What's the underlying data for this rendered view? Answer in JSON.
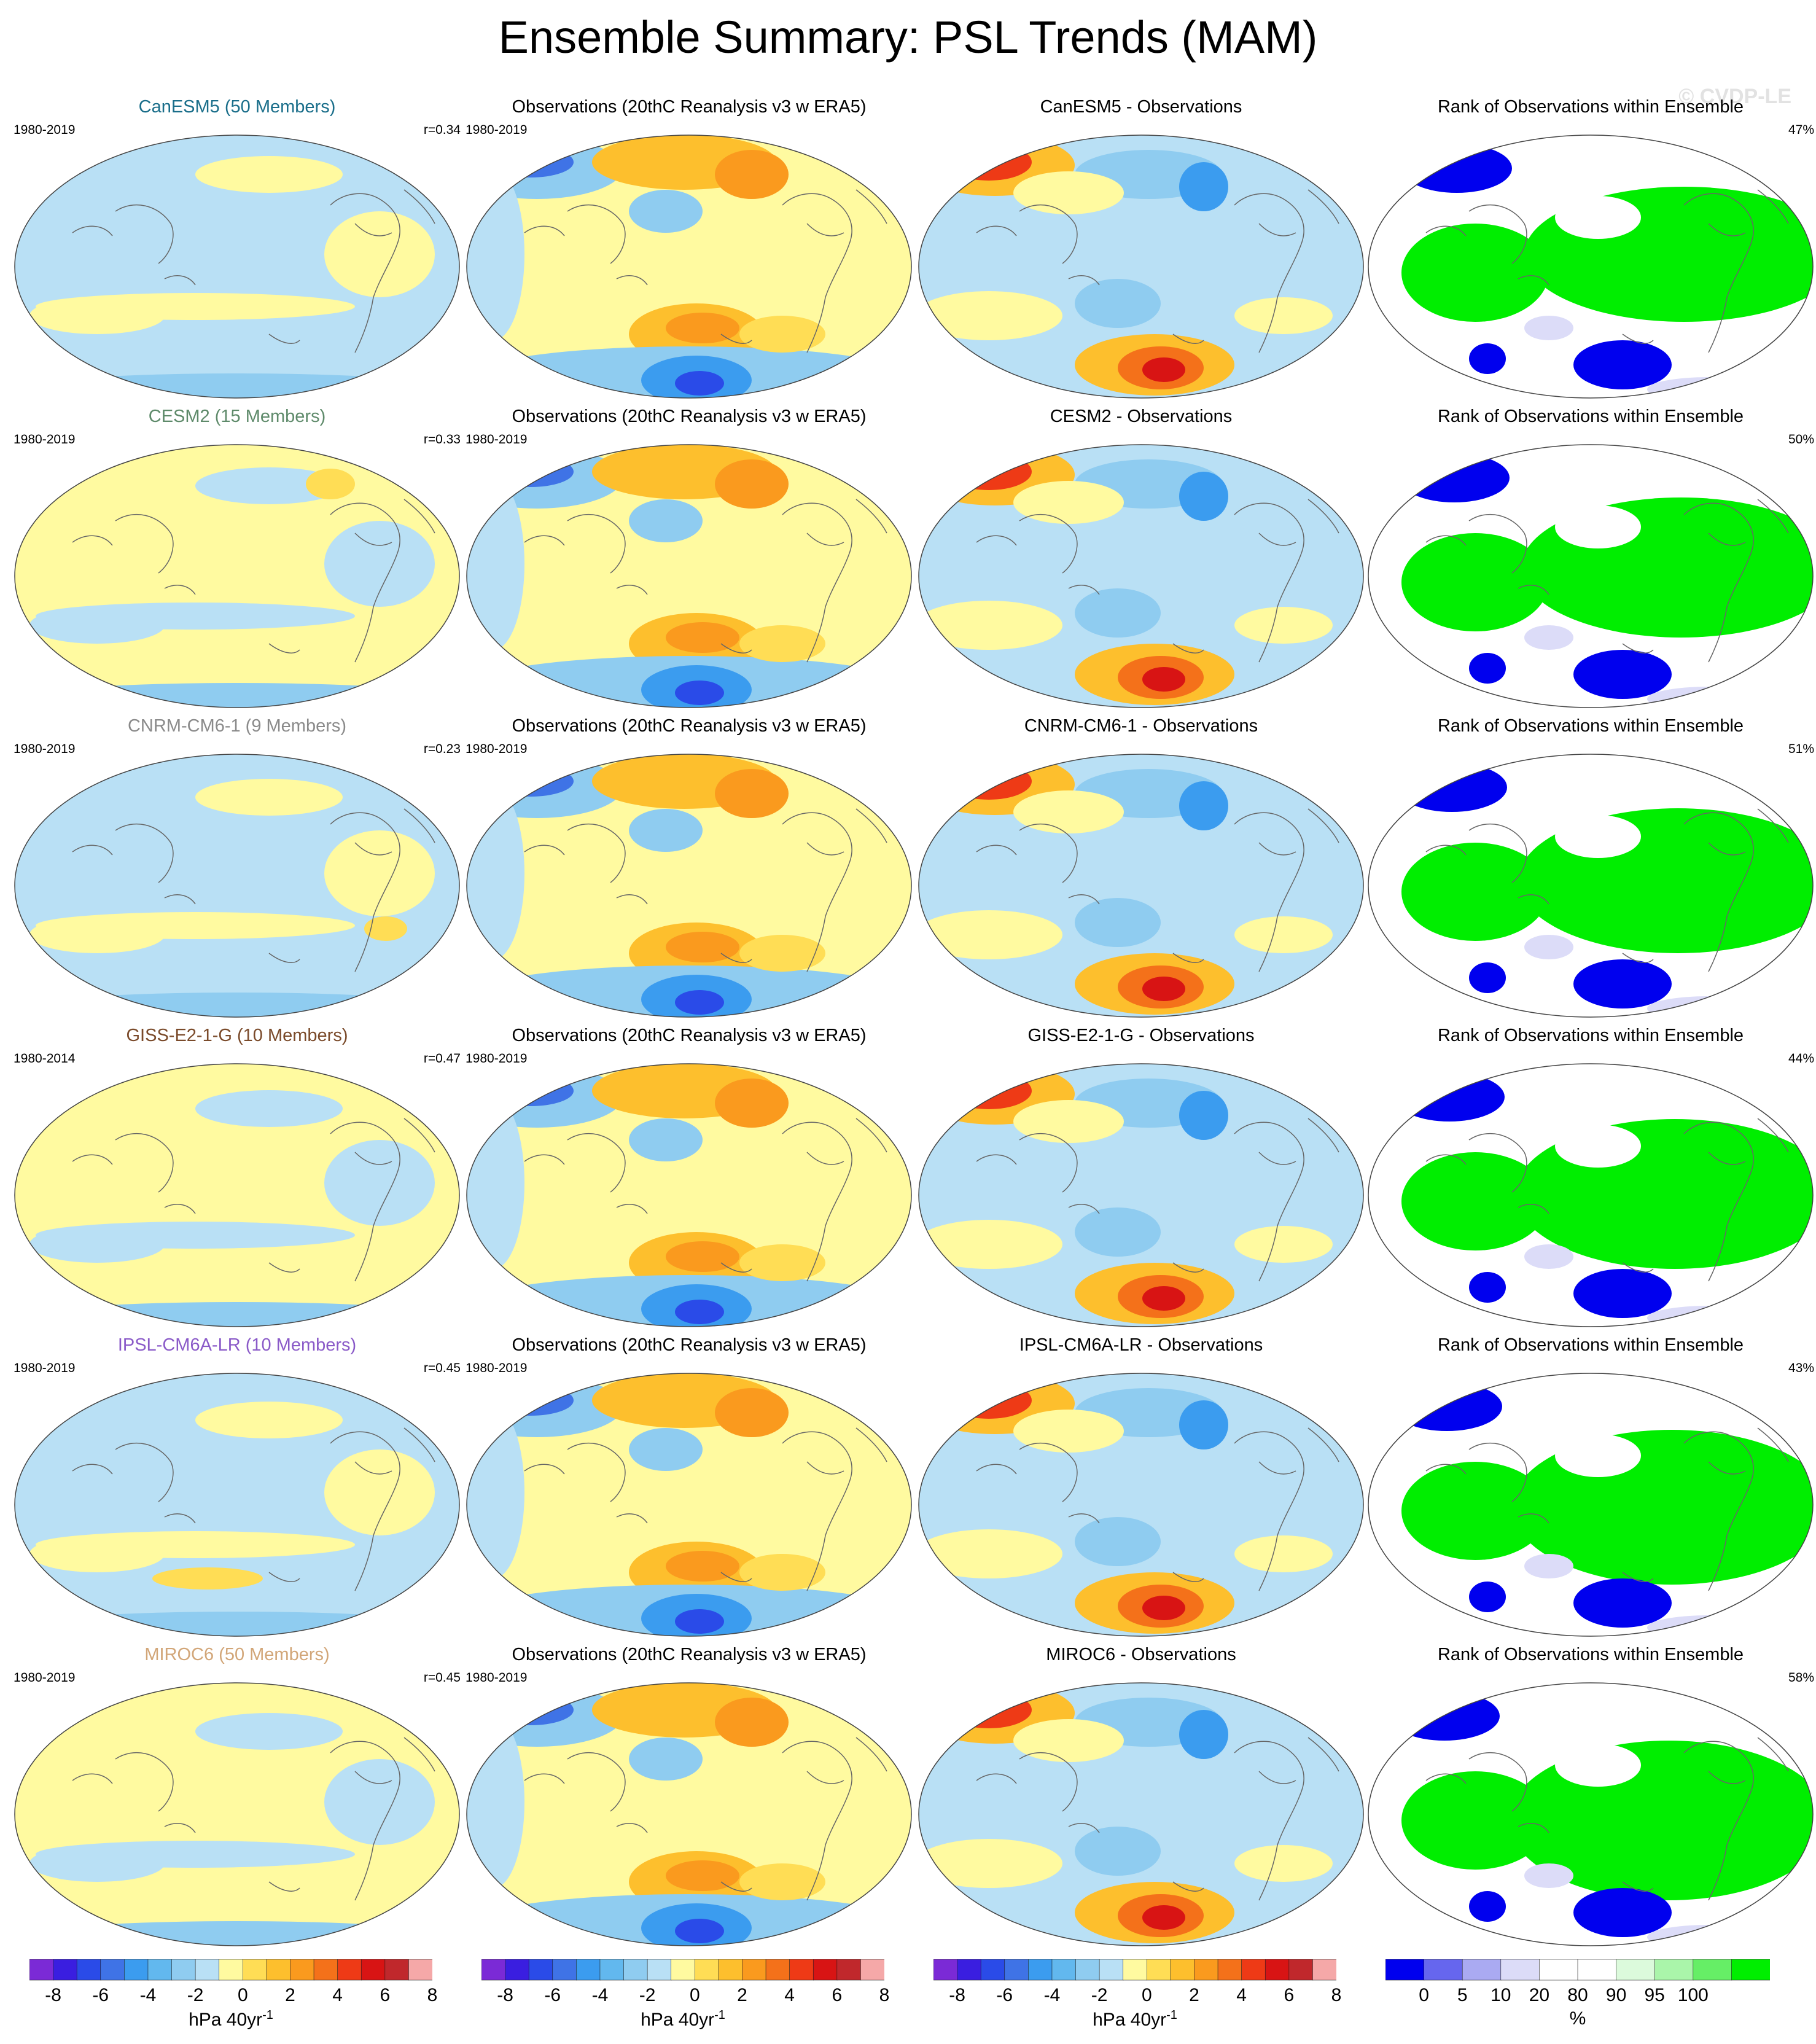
{
  "title": "Ensemble Summary: PSL Trends (MAM)",
  "watermark": "© CVDP-LE",
  "rows": [
    {
      "model_title": "CanESM5 (50 Members)",
      "model_color": "#1a6e8a",
      "period": "1980-2019",
      "r": "r=0.34",
      "obs_title": "Observations (20thC Reanalysis v3 w ERA5)",
      "obs_period": "1980-2019",
      "diff_title": "CanESM5 - Observations",
      "rank_title": "Rank of Observations within Ensemble",
      "rank_pct": "47%"
    },
    {
      "model_title": "CESM2 (15 Members)",
      "model_color": "#5e8a6a",
      "period": "1980-2019",
      "r": "r=0.33",
      "obs_title": "Observations (20thC Reanalysis v3 w ERA5)",
      "obs_period": "1980-2019",
      "diff_title": "CESM2 - Observations",
      "rank_title": "Rank of Observations within Ensemble",
      "rank_pct": "50%"
    },
    {
      "model_title": "CNRM-CM6-1 (9 Members)",
      "model_color": "#8a8a8a",
      "period": "1980-2019",
      "r": "r=0.23",
      "obs_title": "Observations (20thC Reanalysis v3 w ERA5)",
      "obs_period": "1980-2019",
      "diff_title": "CNRM-CM6-1 - Observations",
      "rank_title": "Rank of Observations within Ensemble",
      "rank_pct": "51%"
    },
    {
      "model_title": "GISS-E2-1-G (10 Members)",
      "model_color": "#7a4a2a",
      "period": "1980-2014",
      "r": "r=0.47",
      "obs_title": "Observations (20thC Reanalysis v3 w ERA5)",
      "obs_period": "1980-2019",
      "diff_title": "GISS-E2-1-G - Observations",
      "rank_title": "Rank of Observations within Ensemble",
      "rank_pct": "44%"
    },
    {
      "model_title": "IPSL-CM6A-LR (10 Members)",
      "model_color": "#8a5ac8",
      "period": "1980-2019",
      "r": "r=0.45",
      "obs_title": "Observations (20thC Reanalysis v3 w ERA5)",
      "obs_period": "1980-2019",
      "diff_title": "IPSL-CM6A-LR - Observations",
      "rank_title": "Rank of Observations within Ensemble",
      "rank_pct": "43%"
    },
    {
      "model_title": "MIROC6 (50 Members)",
      "model_color": "#d2a678",
      "period": "1980-2019",
      "r": "r=0.45",
      "obs_title": "Observations (20thC Reanalysis v3 w ERA5)",
      "obs_period": "1980-2019",
      "diff_title": "MIROC6 - Observations",
      "rank_title": "Rank of Observations within Ensemble",
      "rank_pct": "58%"
    }
  ],
  "trend_colorbar": {
    "colors": [
      "#7b2ad6",
      "#3a1ee0",
      "#2a4be8",
      "#3f73e6",
      "#3b9cef",
      "#62b8ee",
      "#8fccf0",
      "#b9e0f5",
      "#fffaa0",
      "#ffdd55",
      "#fdbf2d",
      "#fa9a1e",
      "#f4711a",
      "#ee3a16",
      "#d81414",
      "#c0282c",
      "#f5a8a8"
    ],
    "ticks": [
      "-8",
      "-6",
      "-4",
      "-2",
      "0",
      "2",
      "4",
      "6",
      "8"
    ],
    "unit": "hPa 40yr",
    "unit_sup": "-1"
  },
  "rank_colorbar": {
    "colors": [
      "#0000ee",
      "#6666ee",
      "#aaaaf2",
      "#dcdcf8",
      "#ffffff",
      "#ffffff",
      "#dcfadc",
      "#aaf5aa",
      "#66ee66",
      "#00ee00"
    ],
    "ticks": [
      "0",
      "5",
      "10",
      "20",
      "80",
      "90",
      "95",
      "100"
    ],
    "unit": "%"
  }
}
